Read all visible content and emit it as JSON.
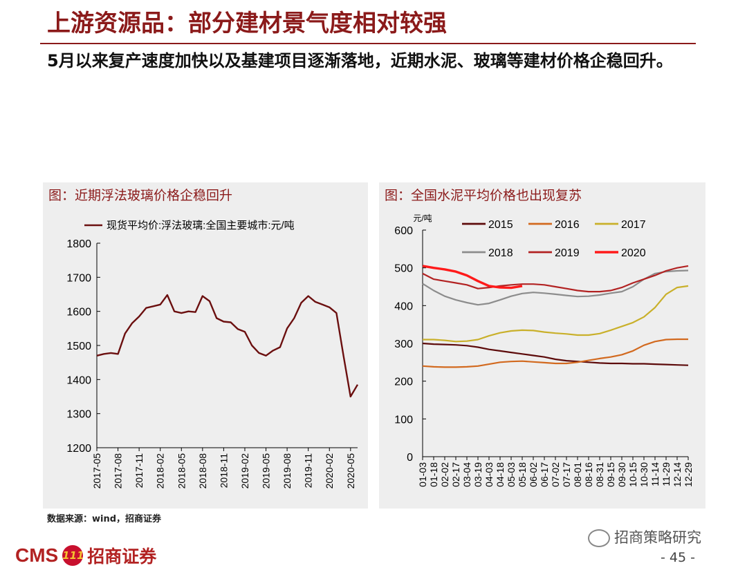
{
  "page": {
    "title": "上游资源品：部分建材景气度相对较强",
    "subtitle": "5月以来复产速度加快以及基建项目逐渐落地，近期水泥、玻璃等建材价格企稳回升。",
    "source": "数据来源：wind，招商证券",
    "wechat": "招商策略研究",
    "logo_cms": "CMS",
    "logo_badge": "111",
    "logo_cn": "招商证券",
    "page_number": "- 45 -"
  },
  "colors": {
    "title": "#8b1a1a",
    "panel_bg": "#eeeeee",
    "glass": "#6b0f0f",
    "s2015": "#5c0a0a",
    "s2016": "#d2691e",
    "s2017": "#c9b02a",
    "s2018": "#8c8c8c",
    "s2019": "#b22222",
    "s2020": "#ff1a1a"
  },
  "chart_data": [
    {
      "type": "line",
      "title": "图：近期浮法玻璃价格企稳回升",
      "series": [
        {
          "name": "现货平均价:浮法玻璃:全国主要城市:元/吨",
          "x": [
            "2017-05",
            "2017-06",
            "2017-07",
            "2017-08",
            "2017-09",
            "2017-10",
            "2017-11",
            "2017-12",
            "2018-01",
            "2018-02",
            "2018-03",
            "2018-04",
            "2018-05",
            "2018-06",
            "2018-07",
            "2018-08",
            "2018-09",
            "2018-10",
            "2018-11",
            "2018-12",
            "2019-01",
            "2019-02",
            "2019-03",
            "2019-04",
            "2019-05",
            "2019-06",
            "2019-07",
            "2019-08",
            "2019-09",
            "2019-10",
            "2019-11",
            "2019-12",
            "2020-01",
            "2020-02",
            "2020-03",
            "2020-04",
            "2020-05",
            "2020-06"
          ],
          "values": [
            1470,
            1475,
            1478,
            1475,
            1535,
            1565,
            1585,
            1610,
            1615,
            1620,
            1648,
            1600,
            1595,
            1600,
            1598,
            1645,
            1630,
            1580,
            1570,
            1568,
            1548,
            1540,
            1500,
            1478,
            1470,
            1485,
            1495,
            1550,
            1580,
            1625,
            1645,
            1628,
            1620,
            1612,
            1595,
            1470,
            1350,
            1385
          ]
        }
      ],
      "y_ticks": [
        "1800",
        "1700",
        "1600",
        "1500",
        "1400",
        "1300",
        "1200"
      ],
      "x_ticks": [
        "2017-05",
        "2017-08",
        "2017-11",
        "2018-02",
        "2018-05",
        "2018-08",
        "2018-11",
        "2019-02",
        "2019-05",
        "2019-08",
        "2019-11",
        "2020-02",
        "2020-05"
      ],
      "ylim": [
        1200,
        1800
      ],
      "grid": false,
      "legend": "top"
    },
    {
      "type": "line",
      "title": "图：全国水泥平均价格也出现复苏",
      "unit": "元/吨",
      "x_ticks": [
        "01-03",
        "01-18",
        "02-02",
        "02-17",
        "03-04",
        "03-19",
        "04-03",
        "04-18",
        "05-03",
        "05-18",
        "06-02",
        "06-17",
        "07-02",
        "07-17",
        "08-01",
        "08-16",
        "08-31",
        "09-15",
        "09-30",
        "10-15",
        "10-30",
        "11-14",
        "11-29",
        "12-14",
        "12-29"
      ],
      "y_ticks": [
        "600",
        "500",
        "400",
        "300",
        "200",
        "100",
        "0"
      ],
      "ylim": [
        0,
        600
      ],
      "grid": false,
      "legend": "top",
      "series": [
        {
          "name": "2015",
          "values": [
            300,
            298,
            297,
            296,
            294,
            290,
            284,
            280,
            276,
            272,
            268,
            264,
            258,
            254,
            252,
            250,
            248,
            247,
            247,
            246,
            246,
            245,
            244,
            243,
            242
          ]
        },
        {
          "name": "2016",
          "values": [
            240,
            238,
            237,
            237,
            238,
            240,
            245,
            250,
            252,
            253,
            251,
            249,
            247,
            247,
            250,
            255,
            260,
            264,
            270,
            280,
            295,
            305,
            310,
            311,
            311
          ]
        },
        {
          "name": "2017",
          "values": [
            310,
            310,
            308,
            305,
            306,
            310,
            320,
            328,
            333,
            335,
            334,
            330,
            327,
            325,
            322,
            322,
            326,
            335,
            345,
            355,
            370,
            395,
            430,
            448,
            452
          ]
        },
        {
          "name": "2018",
          "values": [
            458,
            440,
            425,
            415,
            408,
            402,
            406,
            415,
            425,
            432,
            435,
            433,
            430,
            427,
            424,
            425,
            428,
            433,
            437,
            450,
            470,
            485,
            490,
            492,
            493
          ]
        },
        {
          "name": "2019",
          "values": [
            485,
            470,
            465,
            460,
            455,
            445,
            448,
            452,
            455,
            457,
            457,
            455,
            450,
            445,
            440,
            437,
            437,
            440,
            448,
            460,
            470,
            480,
            492,
            500,
            505
          ]
        },
        {
          "name": "2020",
          "values": [
            505,
            500,
            496,
            490,
            480,
            465,
            452,
            448,
            447,
            452
          ]
        }
      ]
    }
  ]
}
